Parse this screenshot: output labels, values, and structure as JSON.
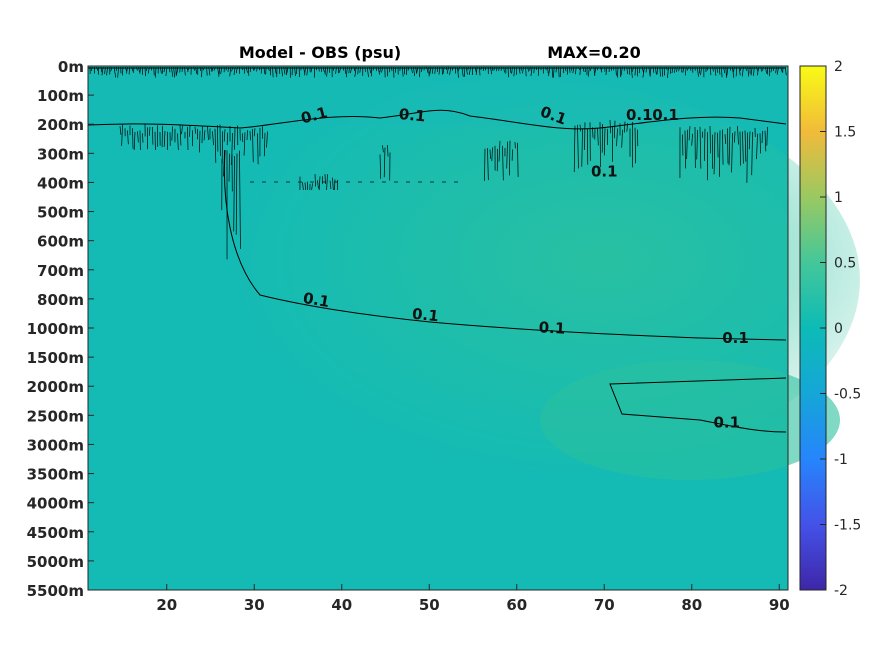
{
  "chart_data": {
    "type": "heatmap",
    "title": "Model - OBS (psu)",
    "subtitle": "MAX=0.20",
    "x_ticks": [
      20,
      30,
      40,
      50,
      60,
      70,
      80,
      90
    ],
    "xlim": [
      11,
      91
    ],
    "y_ticks": [
      "0m",
      "100m",
      "200m",
      "300m",
      "400m",
      "500m",
      "600m",
      "700m",
      "800m",
      "1000m",
      "1500m",
      "2000m",
      "2500m",
      "3000m",
      "3500m",
      "4000m",
      "4500m",
      "5000m",
      "5500m"
    ],
    "colorbar": {
      "range": [
        -2,
        2
      ],
      "ticks": [
        "2",
        "1.5",
        "1",
        "0.5",
        "0",
        "-0.5",
        "-1",
        "-1.5",
        "-2"
      ]
    },
    "contour_labels": [
      {
        "text": "0.1",
        "x": 37,
        "y": 800,
        "rot": 10
      },
      {
        "text": "0.1",
        "x": 49.5,
        "y": "1000m",
        "rot": 6
      },
      {
        "text": "0.1",
        "x": 64,
        "y": "1000m-",
        "rot": 3
      },
      {
        "text": "0.1",
        "x": 85,
        "y": "1500m",
        "rot": 0
      },
      {
        "text": "0.1",
        "x": 84,
        "y": "2500m",
        "rot": 0
      },
      {
        "text": "0.1",
        "x": 37,
        "y": "200m",
        "rot": -15
      },
      {
        "text": "0.1",
        "x": 48,
        "y": "200m",
        "rot": 5
      },
      {
        "text": "0.1",
        "x": 64,
        "y": "200m",
        "rot": 20
      },
      {
        "text": "0.1",
        "x": 74,
        "y": "200m",
        "rot": 0
      },
      {
        "text": "0.1",
        "x": 77,
        "y": "200m",
        "rot": 0
      },
      {
        "text": "0.1",
        "x": 70,
        "y": "400m",
        "rot": 0
      }
    ]
  }
}
